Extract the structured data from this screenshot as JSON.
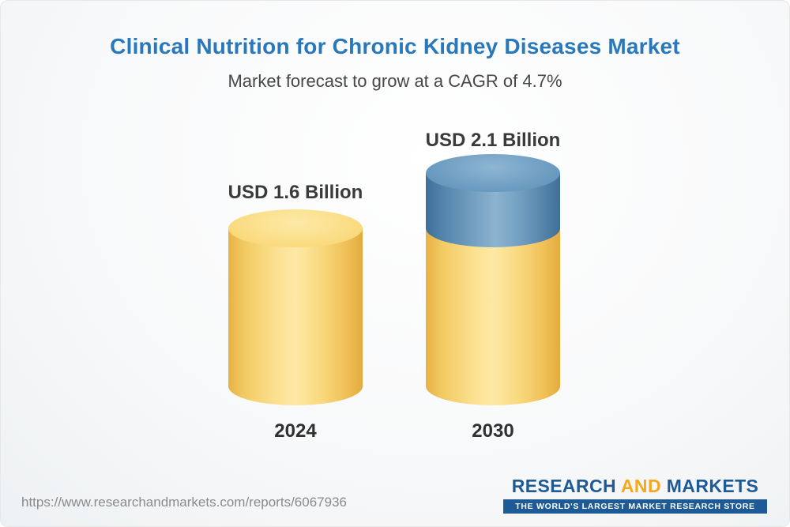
{
  "title": "Clinical Nutrition for Chronic Kidney Diseases Market",
  "subtitle": "Market forecast to grow at a CAGR of 4.7%",
  "chart_data": {
    "type": "bar",
    "variant": "3d-cylinder",
    "categories": [
      "2024",
      "2030"
    ],
    "values": [
      1.6,
      2.1
    ],
    "unit": "USD Billion",
    "value_labels": [
      "USD 1.6 Billion",
      "USD 2.1 Billion"
    ],
    "cagr_pct": 4.7,
    "series": [
      {
        "name": "base-2024-level",
        "values": [
          1.6,
          1.6
        ],
        "color": "#F6CF6B"
      },
      {
        "name": "growth-to-2030",
        "values": [
          0,
          0.5
        ],
        "color": "#5E92BA"
      }
    ],
    "xlabel": "",
    "ylabel": "",
    "axes_visible": false,
    "grid": false,
    "legend_position": "none"
  },
  "footer": {
    "url": "https://www.researchandmarkets.com/reports/6067936",
    "logo": {
      "word1": "RESEARCH",
      "word2": "AND",
      "word3": "MARKETS",
      "tagline": "THE WORLD'S LARGEST MARKET RESEARCH STORE"
    }
  },
  "colors": {
    "title_blue": "#2878BB",
    "bar_yellow": "#F6CF6B",
    "bar_blue": "#5E92BA",
    "logo_blue": "#1D5A96",
    "logo_gold": "#F5A81C"
  }
}
